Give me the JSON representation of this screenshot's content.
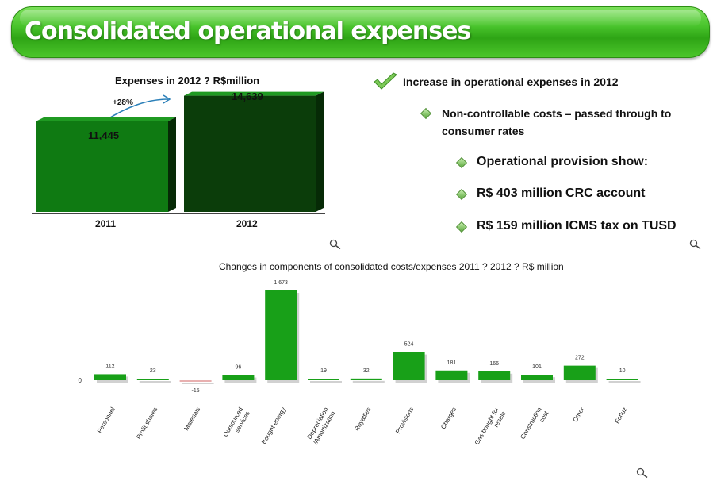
{
  "page": {
    "title": "Consolidated operational expenses"
  },
  "bullets": {
    "main": "Increase in operational expenses in 2012",
    "sub": "Non-controllable costs – passed through to",
    "sub_cont": "consumer rates",
    "items": [
      "Operational provision show:",
      "R$ 403 million CRC account",
      "R$ 159 million ICMS tax on TUSD"
    ]
  },
  "colors": {
    "bar_2011": "#0f7a12",
    "bar_2012": "#0b3d0a",
    "bar_changes": "#18a018",
    "negative_bar": "#e8b0b0",
    "title_bar": "#3bb21f"
  },
  "icons": {
    "check": "checkmark-icon",
    "bullet": "diamond-bullet-icon",
    "zoom": "magnifier-icon"
  },
  "chart_data": [
    {
      "type": "bar",
      "title": "Expenses in 2012 ? R$million",
      "categories": [
        "2011",
        "2012"
      ],
      "values": [
        11445,
        14639
      ],
      "value_labels": [
        "11,445",
        "14,639"
      ],
      "annotation": "+28%",
      "ylim": [
        0,
        16000
      ],
      "grid": false,
      "legend": "none"
    },
    {
      "type": "bar",
      "title": "Changes in components of consolidated costs/expenses 2011 ? 2012 ? R$ million",
      "categories": [
        "Personnel",
        "Profit shares",
        "Materials",
        "Outsourced services",
        "Bought energy",
        "Depreciation /Amortization",
        "Royalties",
        "Provisions",
        "Charges",
        "Gas bought for resale",
        "Construction cost",
        "Other",
        "Forluz"
      ],
      "values": [
        112,
        23,
        -15,
        96,
        1673,
        19,
        32,
        524,
        181,
        166,
        101,
        272,
        10
      ],
      "value_labels": [
        "112",
        "23",
        "-15",
        "96",
        "1,673",
        "19",
        "32",
        "524",
        "181",
        "166",
        "101",
        "272",
        "10"
      ],
      "y_tick": "0",
      "ylim": [
        -15,
        1700
      ],
      "grid": false,
      "legend": "none"
    }
  ]
}
